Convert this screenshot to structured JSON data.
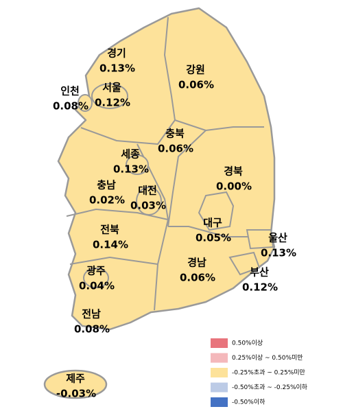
{
  "regions": [
    {
      "name": "경기",
      "value": "0.13%"
    },
    {
      "name": "서울",
      "value": "0.12%"
    },
    {
      "name": "인천",
      "value": "0.08%"
    },
    {
      "name": "강원",
      "value": "0.06%"
    },
    {
      "name": "충북",
      "value": "0.06%"
    },
    {
      "name": "세종",
      "value": "0.13%"
    },
    {
      "name": "경북",
      "value": "0.00%"
    },
    {
      "name": "충남",
      "value": "0.02%"
    },
    {
      "name": "대전",
      "value": "0.03%"
    },
    {
      "name": "대구",
      "value": "0.05%"
    },
    {
      "name": "울산",
      "value": "0.13%"
    },
    {
      "name": "전북",
      "value": "0.14%"
    },
    {
      "name": "경남",
      "value": "0.06%"
    },
    {
      "name": "부산",
      "value": "0.12%"
    },
    {
      "name": "광주",
      "value": "0.04%"
    },
    {
      "name": "전남",
      "value": "0.08%"
    },
    {
      "name": "제주",
      "value": "-0.03%"
    }
  ],
  "legend": [
    {
      "label": "0.50%이상",
      "color": "#e8747c"
    },
    {
      "label": "0.25%이상 ~ 0.50%미만",
      "color": "#f4b8bb"
    },
    {
      "label": "-0.25%초과 ~ 0.25%미만",
      "color": "#fde29a"
    },
    {
      "label": "-0.50%초과 ~ -0.25%이하",
      "color": "#bccbe6"
    },
    {
      "label": "-0.50%이하",
      "color": "#4472c4"
    }
  ]
}
